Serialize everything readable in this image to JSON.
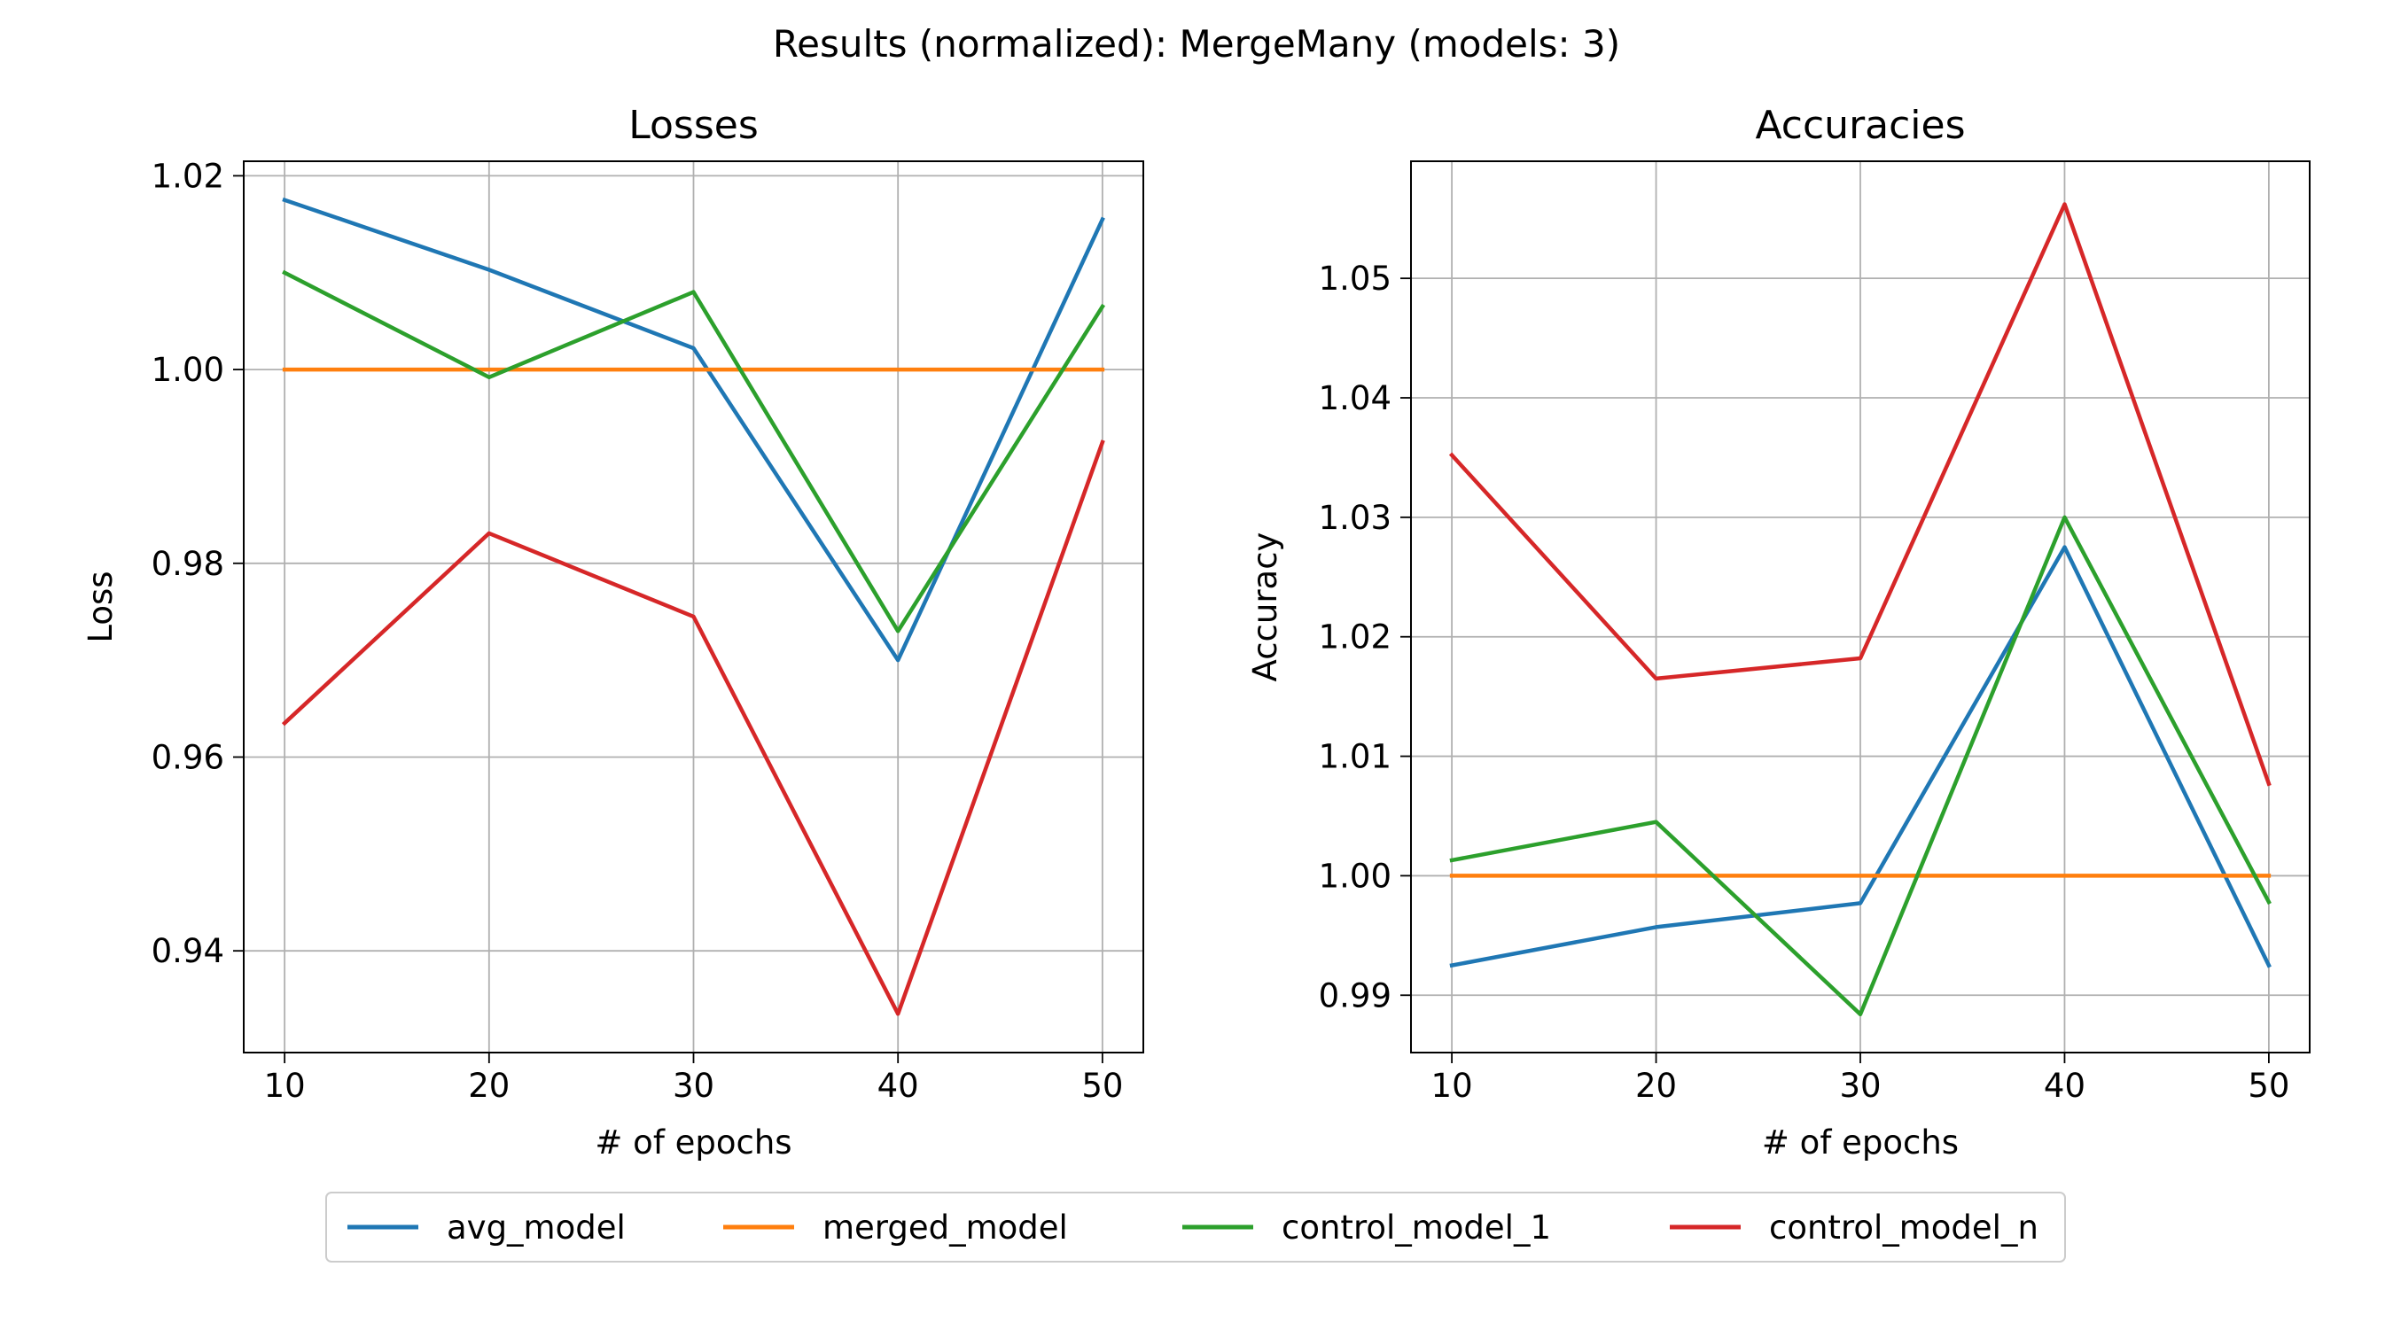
{
  "suptitle": "Results (normalized): MergeMany (models: 3)",
  "colors": {
    "avg_model": "#1f77b4",
    "merged_model": "#ff7f0e",
    "control_model_1": "#2ca02c",
    "control_model_n": "#d62728",
    "grid": "#b0b0b0"
  },
  "legend": {
    "placement": "bottom-center",
    "entries": [
      "avg_model",
      "merged_model",
      "control_model_1",
      "control_model_n"
    ]
  },
  "chart_data": [
    {
      "type": "line",
      "title": "Losses",
      "xlabel": "# of epochs",
      "ylabel": "Loss",
      "x": [
        10,
        20,
        30,
        40,
        50
      ],
      "xticks": [
        "10",
        "20",
        "30",
        "40",
        "50"
      ],
      "yticks": [
        "0.94",
        "0.96",
        "0.98",
        "1.00",
        "1.02"
      ],
      "xlim": [
        8,
        52
      ],
      "ylim": [
        0.9295,
        1.0215
      ],
      "grid": true,
      "series": [
        {
          "name": "avg_model",
          "values": [
            1.0175,
            1.0103,
            1.0022,
            0.97,
            1.0155
          ]
        },
        {
          "name": "merged_model",
          "values": [
            1.0,
            1.0,
            1.0,
            1.0,
            1.0
          ]
        },
        {
          "name": "control_model_1",
          "values": [
            1.01,
            0.9992,
            1.008,
            0.973,
            1.0065
          ]
        },
        {
          "name": "control_model_n",
          "values": [
            0.9635,
            0.9831,
            0.9745,
            0.9335,
            0.9925
          ]
        }
      ]
    },
    {
      "type": "line",
      "title": "Accuracies",
      "xlabel": "# of epochs",
      "ylabel": "Accuracy",
      "x": [
        10,
        20,
        30,
        40,
        50
      ],
      "xticks": [
        "10",
        "20",
        "30",
        "40",
        "50"
      ],
      "yticks": [
        "0.99",
        "1.00",
        "1.01",
        "1.02",
        "1.03",
        "1.04",
        "1.05"
      ],
      "xlim": [
        8,
        52
      ],
      "ylim": [
        0.9852,
        1.0598
      ],
      "grid": true,
      "series": [
        {
          "name": "avg_model",
          "values": [
            0.9925,
            0.9957,
            0.9977,
            1.0275,
            0.9925
          ]
        },
        {
          "name": "merged_model",
          "values": [
            1.0,
            1.0,
            1.0,
            1.0,
            1.0
          ]
        },
        {
          "name": "control_model_1",
          "values": [
            1.0013,
            1.0045,
            0.9884,
            1.03,
            0.9978
          ]
        },
        {
          "name": "control_model_n",
          "values": [
            1.0352,
            1.0165,
            1.0182,
            1.0562,
            1.0077
          ]
        }
      ]
    }
  ]
}
